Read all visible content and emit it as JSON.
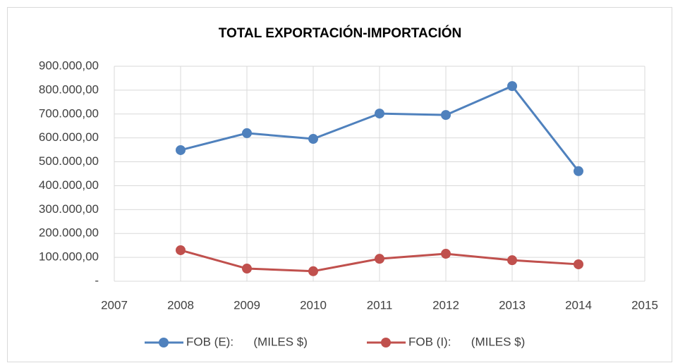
{
  "chart_data": {
    "type": "line",
    "title": "TOTAL EXPORTACIÓN-IMPORTACIÓN",
    "x": [
      2008,
      2009,
      2010,
      2011,
      2012,
      2013,
      2014
    ],
    "series": [
      {
        "name": "FOB (E):      (MILES $)",
        "color": "#4f81bd",
        "values": [
          549000,
          620000,
          596000,
          702000,
          696000,
          817000,
          461000
        ]
      },
      {
        "name": "FOB (I):      (MILES $)",
        "color": "#c0504d",
        "values": [
          130000,
          53000,
          42000,
          94000,
          115000,
          88000,
          71000
        ]
      }
    ],
    "xlim": [
      2007,
      2015
    ],
    "xticks": [
      2007,
      2008,
      2009,
      2010,
      2011,
      2012,
      2013,
      2014,
      2015
    ],
    "ylim": [
      0,
      900000
    ],
    "yticks": [
      {
        "value": 0,
        "label": "-"
      },
      {
        "value": 100000,
        "label": "100.000,00"
      },
      {
        "value": 200000,
        "label": "200.000,00"
      },
      {
        "value": 300000,
        "label": "300.000,00"
      },
      {
        "value": 400000,
        "label": "400.000,00"
      },
      {
        "value": 500000,
        "label": "500.000,00"
      },
      {
        "value": 600000,
        "label": "600.000,00"
      },
      {
        "value": 700000,
        "label": "700.000,00"
      },
      {
        "value": 800000,
        "label": "800.000,00"
      },
      {
        "value": 900000,
        "label": "900.000,00"
      }
    ],
    "grid": true,
    "legend": "bottom"
  }
}
